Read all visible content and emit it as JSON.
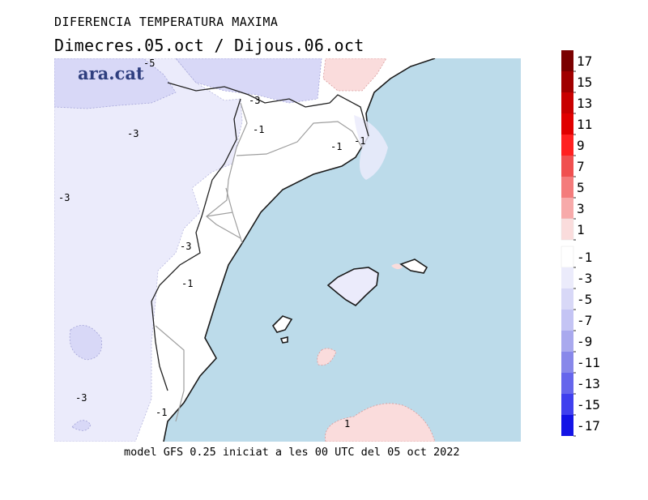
{
  "header": {
    "title": "DIFERENCIA TEMPERATURA MAXIMA",
    "subtitle": "Dimecres.05.oct / Dijous.06.oct",
    "brand": "ara.cat"
  },
  "footer": {
    "caption": "model GFS 0.25 iniciat a les 00 UTC del 05 oct 2022"
  },
  "map": {
    "sea_color": "#bcdbea",
    "land_neutral_color": "#ffffff",
    "contour_labels": [
      "-5",
      "-3",
      "-1",
      "-1",
      "-1",
      "-3",
      "-3",
      "-3",
      "-1",
      "-3",
      "-1",
      "1"
    ]
  },
  "legend": {
    "entries": [
      {
        "label": "17",
        "color": "#7a0000"
      },
      {
        "label": "15",
        "color": "#a00000"
      },
      {
        "label": "13",
        "color": "#c80000"
      },
      {
        "label": "11",
        "color": "#e00000"
      },
      {
        "label": "9",
        "color": "#ff2020"
      },
      {
        "label": "7",
        "color": "#f05050"
      },
      {
        "label": "5",
        "color": "#f47c7c"
      },
      {
        "label": "3",
        "color": "#f7aaaa"
      },
      {
        "label": "1",
        "color": "#fadcdc"
      },
      {
        "label": "-1",
        "color": "#ffffff"
      },
      {
        "label": "-3",
        "color": "#ebebfb"
      },
      {
        "label": "-5",
        "color": "#d8d8f7"
      },
      {
        "label": "-7",
        "color": "#c4c4f4"
      },
      {
        "label": "-9",
        "color": "#a9a9ee"
      },
      {
        "label": "-11",
        "color": "#8888ea"
      },
      {
        "label": "-13",
        "color": "#6666ec"
      },
      {
        "label": "-15",
        "color": "#4040ee"
      },
      {
        "label": "-17",
        "color": "#1414e6"
      }
    ]
  }
}
